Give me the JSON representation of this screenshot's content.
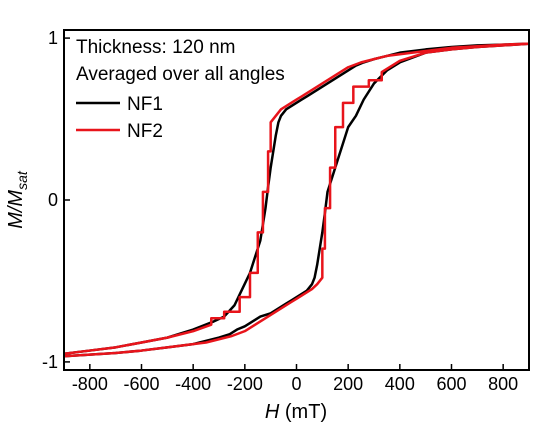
{
  "chart_data": {
    "type": "line",
    "annotations": [
      "Thickness: 120 nm",
      "Averaged over all angles"
    ],
    "xlabel": {
      "var": "H",
      "unit": " (mT)"
    },
    "ylabel": {
      "main": "M/M",
      "sub": "sat"
    },
    "xlim": [
      -900,
      900
    ],
    "ylim": [
      -1.05,
      1.05
    ],
    "xticks": [
      -800,
      -600,
      -400,
      -200,
      0,
      200,
      400,
      600,
      800
    ],
    "yticks": [
      -1,
      0,
      1
    ],
    "grid": false,
    "legend_position": "top-left",
    "series": [
      {
        "name": "NF1",
        "color": "#000000",
        "x": [
          -900,
          -800,
          -700,
          -600,
          -500,
          -400,
          -320,
          -280,
          -240,
          -210,
          -180,
          -160,
          -140,
          -130,
          -120,
          -110,
          -100,
          -90,
          -80,
          -70,
          -60,
          -40,
          -20,
          0,
          20,
          40,
          60,
          70,
          80,
          90,
          100,
          110,
          120,
          140,
          160,
          180,
          200,
          230,
          260,
          300,
          350,
          400,
          500,
          600,
          700,
          800,
          900,
          800,
          700,
          600,
          500,
          400,
          350,
          300,
          260,
          230,
          200,
          180,
          160,
          140,
          120,
          110,
          100,
          90,
          80,
          70,
          60,
          50,
          40,
          20,
          0,
          -20,
          -40,
          -60,
          -80,
          -100,
          -120,
          -140,
          -160,
          -180,
          -200,
          -230,
          -260,
          -300,
          -350,
          -400,
          -500,
          -600,
          -700,
          -800,
          -900
        ],
        "y": [
          -0.95,
          -0.93,
          -0.91,
          -0.88,
          -0.85,
          -0.8,
          -0.75,
          -0.72,
          -0.65,
          -0.55,
          -0.45,
          -0.35,
          -0.25,
          -0.15,
          -0.05,
          0.08,
          0.2,
          0.3,
          0.4,
          0.48,
          0.52,
          0.56,
          0.58,
          0.6,
          0.62,
          0.64,
          0.66,
          0.67,
          0.68,
          0.69,
          0.7,
          0.71,
          0.72,
          0.74,
          0.76,
          0.78,
          0.8,
          0.83,
          0.85,
          0.87,
          0.89,
          0.91,
          0.93,
          0.945,
          0.955,
          0.96,
          0.965,
          0.955,
          0.945,
          0.93,
          0.91,
          0.85,
          0.8,
          0.72,
          0.62,
          0.52,
          0.45,
          0.35,
          0.25,
          0.15,
          0.05,
          -0.08,
          -0.2,
          -0.3,
          -0.4,
          -0.48,
          -0.52,
          -0.54,
          -0.56,
          -0.58,
          -0.6,
          -0.62,
          -0.64,
          -0.66,
          -0.68,
          -0.7,
          -0.71,
          -0.72,
          -0.74,
          -0.76,
          -0.78,
          -0.8,
          -0.83,
          -0.85,
          -0.87,
          -0.89,
          -0.91,
          -0.93,
          -0.945,
          -0.955,
          -0.965
        ]
      },
      {
        "name": "NF2",
        "color": "#e8141b",
        "x": [
          -900,
          -800,
          -700,
          -600,
          -500,
          -400,
          -330,
          -330,
          -280,
          -280,
          -220,
          -220,
          -180,
          -180,
          -150,
          -150,
          -130,
          -130,
          -110,
          -110,
          -100,
          -100,
          -80,
          -60,
          -40,
          -20,
          0,
          20,
          40,
          60,
          80,
          100,
          120,
          140,
          160,
          180,
          200,
          250,
          300,
          350,
          400,
          500,
          600,
          700,
          800,
          900,
          800,
          700,
          600,
          500,
          400,
          330,
          330,
          280,
          280,
          220,
          220,
          180,
          180,
          150,
          150,
          130,
          130,
          110,
          110,
          100,
          100,
          80,
          60,
          40,
          20,
          0,
          -20,
          -40,
          -60,
          -80,
          -100,
          -120,
          -140,
          -160,
          -180,
          -200,
          -250,
          -300,
          -350,
          -400,
          -500,
          -600,
          -700,
          -800,
          -900
        ],
        "y": [
          -0.95,
          -0.93,
          -0.91,
          -0.88,
          -0.85,
          -0.81,
          -0.77,
          -0.73,
          -0.73,
          -0.69,
          -0.69,
          -0.6,
          -0.6,
          -0.45,
          -0.45,
          -0.2,
          -0.2,
          0.05,
          0.05,
          0.3,
          0.3,
          0.48,
          0.52,
          0.56,
          0.58,
          0.6,
          0.62,
          0.64,
          0.66,
          0.68,
          0.7,
          0.72,
          0.74,
          0.76,
          0.78,
          0.8,
          0.82,
          0.85,
          0.87,
          0.89,
          0.9,
          0.92,
          0.94,
          0.95,
          0.96,
          0.965,
          0.955,
          0.945,
          0.93,
          0.91,
          0.86,
          0.79,
          0.74,
          0.74,
          0.7,
          0.7,
          0.6,
          0.6,
          0.45,
          0.45,
          0.2,
          0.2,
          -0.05,
          -0.05,
          -0.3,
          -0.3,
          -0.48,
          -0.52,
          -0.55,
          -0.57,
          -0.59,
          -0.61,
          -0.63,
          -0.65,
          -0.67,
          -0.69,
          -0.71,
          -0.73,
          -0.75,
          -0.77,
          -0.79,
          -0.81,
          -0.84,
          -0.86,
          -0.88,
          -0.89,
          -0.91,
          -0.93,
          -0.945,
          -0.955,
          -0.965
        ]
      }
    ]
  }
}
